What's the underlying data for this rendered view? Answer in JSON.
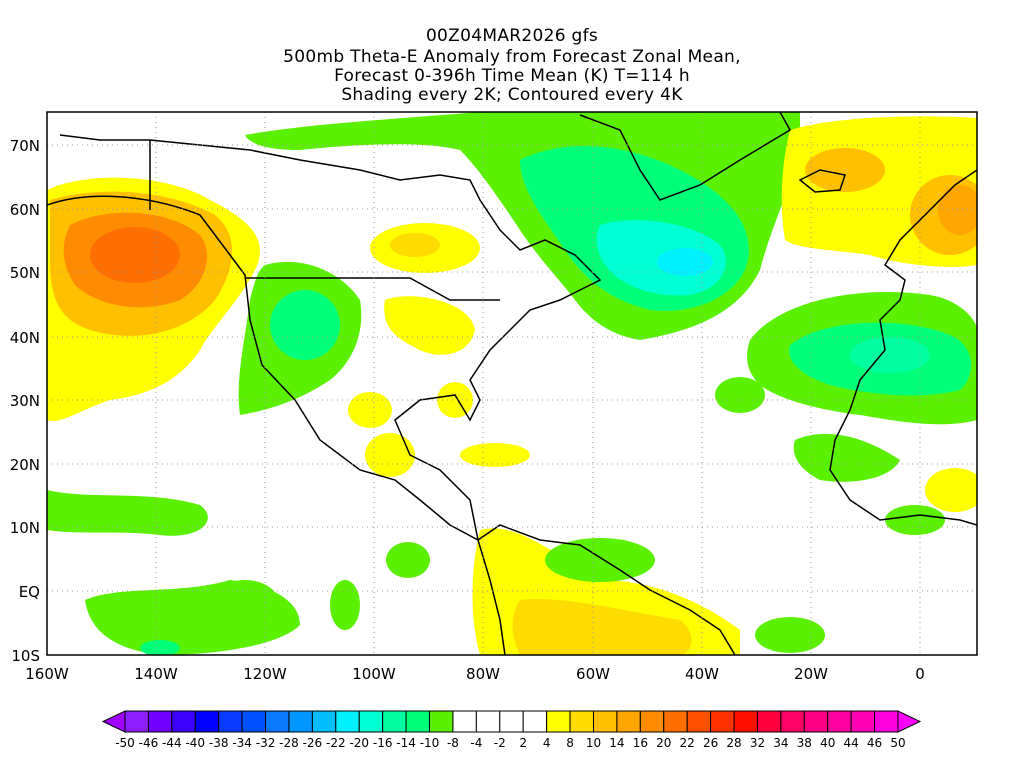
{
  "title": {
    "line1": "00Z04MAR2026 gfs",
    "line2": "500mb Theta-E Anomaly from Forecast Zonal Mean,",
    "line3": "Forecast 0-396h Time Mean (K) T=114 h",
    "line4": "Shading every 2K; Contoured every 4K"
  },
  "map": {
    "lon_labels": [
      "160W",
      "140W",
      "120W",
      "100W",
      "80W",
      "60W",
      "40W",
      "20W",
      "0"
    ],
    "lat_labels": [
      "70N",
      "60N",
      "50N",
      "40N",
      "30N",
      "20N",
      "10N",
      "EQ",
      "10S"
    ]
  },
  "colorbar": {
    "labels": [
      "-50",
      "-46",
      "-44",
      "-40",
      "-38",
      "-34",
      "-32",
      "-28",
      "-26",
      "-22",
      "-20",
      "-16",
      "-14",
      "-10",
      "-8",
      "-4",
      "-2",
      "2",
      "4",
      "8",
      "10",
      "14",
      "16",
      "20",
      "22",
      "26",
      "28",
      "32",
      "34",
      "38",
      "40",
      "44",
      "46",
      "50"
    ],
    "low_color": "#a000ff",
    "high_color": "#ff00ff",
    "colors": [
      "#8c1eff",
      "#7000ff",
      "#3c00ff",
      "#0000ff",
      "#0a3cff",
      "#0050ff",
      "#0a78ff",
      "#0096ff",
      "#00beff",
      "#00f0ff",
      "#00ffd2",
      "#00ffa0",
      "#00ff78",
      "#5af000",
      "#ffffff",
      "#ffffff",
      "#ffffff",
      "#ffffff",
      "#ffff00",
      "#ffdc00",
      "#ffc000",
      "#ffa500",
      "#ff8c00",
      "#ff6e00",
      "#ff5000",
      "#ff3200",
      "#ff0f00",
      "#ff003c",
      "#ff0064",
      "#ff0082",
      "#ff00a0",
      "#ff00b4",
      "#ff00dc"
    ]
  },
  "shading_colors": {
    "yellow": "#ffff00",
    "gold": "#ffdc00",
    "amber": "#ffc000",
    "orange": "#ffa500",
    "deep_orange": "#ff8c00",
    "red_orange": "#ff6e00",
    "lime": "#5af000",
    "green": "#00ff78",
    "aqua": "#00ffa0",
    "teal": "#00ffd2",
    "cyan": "#00f0ff"
  }
}
